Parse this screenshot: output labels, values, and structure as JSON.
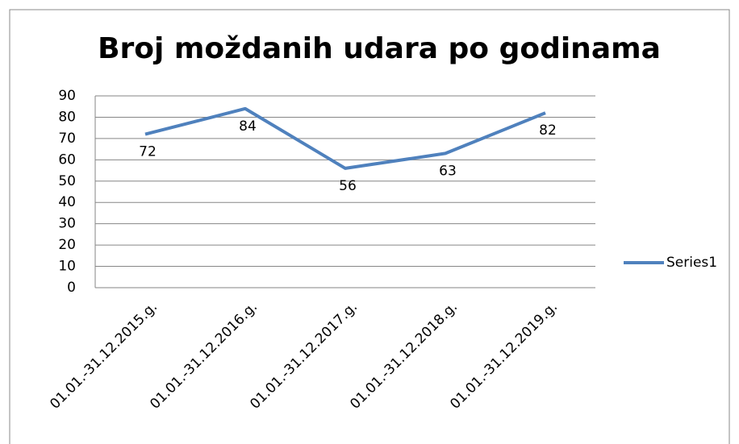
{
  "chart_data": {
    "type": "line",
    "title": "Broj moždanih udara po godinama",
    "categories": [
      "01.01.-31.12.2015.g.",
      "01.01.-31.12.2016.g.",
      "01.01.-31.12.2017.g.",
      "01.01.-31.12.2018.g.",
      "01.01.-31.12.2019.g."
    ],
    "series": [
      {
        "name": "Series1",
        "color": "#4f81bd",
        "values": [
          72,
          84,
          56,
          63,
          82
        ]
      }
    ],
    "ylim": [
      0,
      90
    ],
    "yticks": [
      0,
      10,
      20,
      30,
      40,
      50,
      60,
      70,
      80,
      90
    ],
    "grid": true,
    "legend": "right",
    "data_labels": true
  }
}
